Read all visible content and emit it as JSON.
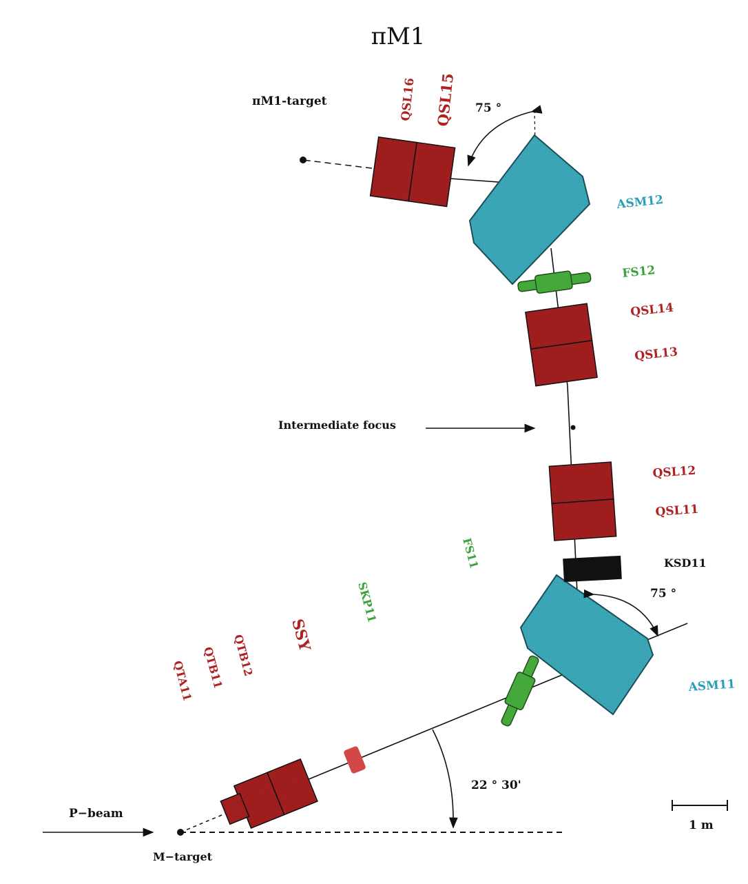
{
  "title": "πM1",
  "colors": {
    "quadrupole": "#a01e1e",
    "dipole": "#3aa6b6",
    "slit": "#44a83a",
    "sextupole_pink": "#d24848",
    "black": "#111111",
    "label_red": "#b02222",
    "label_cyan": "#2aa0b8",
    "label_green": "#3ca23c"
  },
  "labels": {
    "pm1_target": "πM1-target",
    "angle_top": "75 °",
    "angle_mid": "75 °",
    "angle_bottom": "22 ° 30'",
    "asm12": "ASM12",
    "asm11": "ASM11",
    "fs12": "FS12",
    "fs11": "FS11",
    "skp11": "SKP11",
    "ssy": "SSY",
    "qsl16": "QSL16",
    "qsl15": "QSL15",
    "qsl14": "QSL14",
    "qsl13": "QSL13",
    "qsl12": "QSL12",
    "qsl11": "QSL11",
    "ksd11": "KSD11",
    "qtb12": "QTB12",
    "qtb11": "QTB11",
    "qta11": "QTA11",
    "intermediate_focus": "Intermediate focus",
    "p_beam": "P−beam",
    "m_target": "M−target",
    "scale": "1 m"
  }
}
